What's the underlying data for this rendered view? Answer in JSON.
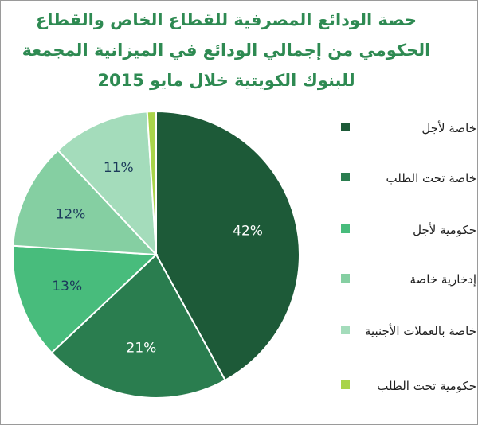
{
  "title": {
    "line1": "حصة الودائع المصرفية للقطاع الخاص والقطاع",
    "line2": "الحكومي من إجمالي الودائع في الميزانية المجمعة",
    "line3": "للبنوك الكويتية خلال مايو  2015"
  },
  "chart_data": {
    "type": "pie",
    "series": [
      {
        "label": "خاصة لأجل",
        "value": 42,
        "display": "42%",
        "color": "#1d5a38"
      },
      {
        "label": "خاصة تحت الطلب",
        "value": 21,
        "display": "21%",
        "color": "#2a7d4f"
      },
      {
        "label": "حكومية لأجل",
        "value": 13,
        "display": "13%",
        "color": "#48bc7c"
      },
      {
        "label": "إدخارية خاصة",
        "value": 12,
        "display": "12%",
        "color": "#85cfa2"
      },
      {
        "label": "خاصة  بالعملات الأجنبية",
        "value": 11,
        "display": "11%",
        "color": "#a4dcbb"
      },
      {
        "label": "حكومية تحت الطلب",
        "value": 1,
        "display": "",
        "color": "#a9d44a"
      }
    ],
    "label_colors": [
      "#ffffff",
      "#ffffff",
      "#1b3a5a",
      "#1b3a5a",
      "#1b3a5a",
      "#1b3a5a"
    ],
    "legend_position": "right"
  }
}
